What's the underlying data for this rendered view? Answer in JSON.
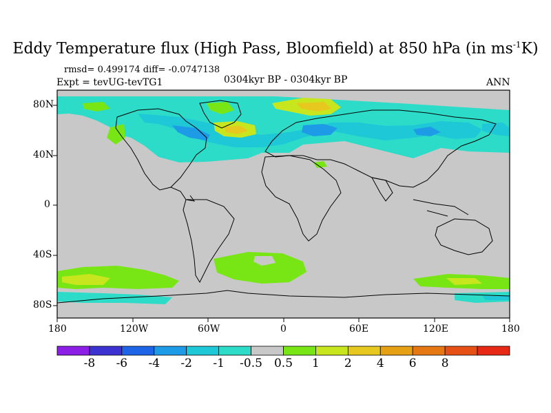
{
  "title": {
    "main": "Eddy Temperature flux (High Pass, Bloomfield) at 850 hPa (in ms",
    "superscript": "-1",
    "unit_end": "K)"
  },
  "stats": {
    "rmsd_label": "rmsd=",
    "rmsd": "0.499174",
    "diff_label": "diff=",
    "diff": "-0.0747138"
  },
  "experiment": "Expt = tevUG-tevTG1",
  "period": "0304kyr BP - 0304kyr BP",
  "season": "ANN",
  "axes": {
    "lat_ticks": [
      "80N",
      "40N",
      "0",
      "40S",
      "80S"
    ],
    "lon_ticks": [
      "180",
      "120W",
      "60W",
      "0",
      "60E",
      "120E",
      "180"
    ],
    "lon_range": [
      -180,
      180
    ],
    "lat_range": [
      -90,
      90
    ]
  },
  "colorbar": {
    "colors": [
      "#8c1ee6",
      "#3c32d2",
      "#1e64e6",
      "#1e9be6",
      "#1ec8d7",
      "#2ddcc8",
      "#c8c8c8",
      "#78e614",
      "#c8e61e",
      "#e6c81e",
      "#e6a014",
      "#e67814",
      "#e65014",
      "#e62814"
    ],
    "labels": [
      "-8",
      "-6",
      "-4",
      "-2",
      "-1",
      "-0.5",
      "0.5",
      "1",
      "2",
      "4",
      "6",
      "8"
    ]
  },
  "map_style": {
    "background": "#c8c8c8",
    "coastline": "#000000"
  }
}
